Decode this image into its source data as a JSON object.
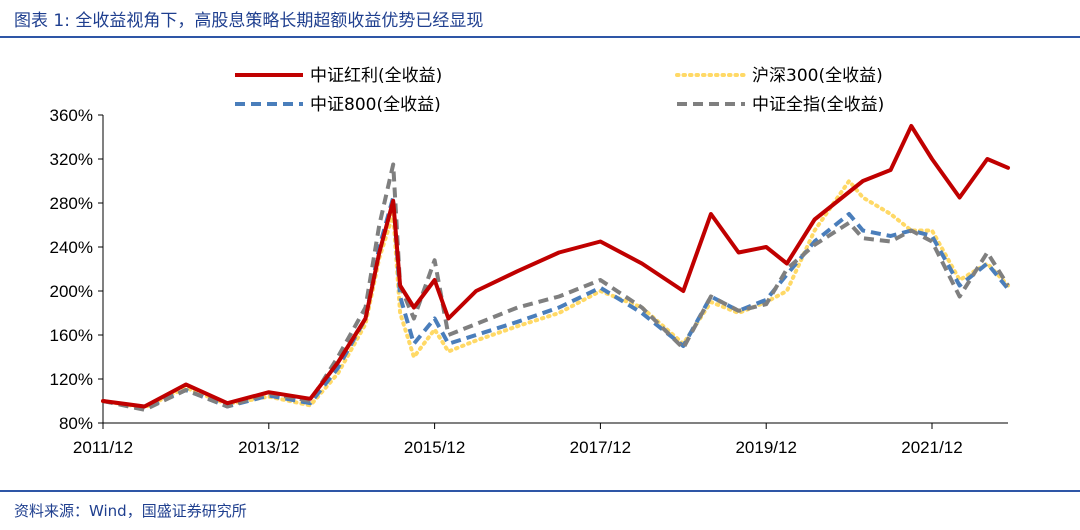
{
  "header": {
    "title": "图表 1: 全收益视角下，高股息策略长期超额收益优势已经显现"
  },
  "footer": {
    "source": "资料来源：Wind，国盛证券研究所"
  },
  "chart_data": {
    "type": "line",
    "title": "",
    "xlabel": "",
    "ylabel": "",
    "x_ticks": [
      "2011/12",
      "2013/12",
      "2015/12",
      "2017/12",
      "2019/12",
      "2021/12"
    ],
    "y_ticks": [
      "80%",
      "120%",
      "160%",
      "200%",
      "240%",
      "280%",
      "320%",
      "360%"
    ],
    "ylim": [
      80,
      360
    ],
    "xlim": [
      "2011/12",
      "2022/11"
    ],
    "legend_position": "top",
    "x": [
      "2011/12",
      "2012/06",
      "2012/12",
      "2013/06",
      "2013/12",
      "2014/06",
      "2014/10",
      "2015/02",
      "2015/04",
      "2015/06",
      "2015/07",
      "2015/09",
      "2015/12",
      "2016/02",
      "2016/06",
      "2016/12",
      "2017/06",
      "2017/12",
      "2018/06",
      "2018/12",
      "2019/04",
      "2019/08",
      "2019/12",
      "2020/03",
      "2020/07",
      "2020/12",
      "2021/02",
      "2021/06",
      "2021/09",
      "2021/12",
      "2022/04",
      "2022/08",
      "2022/11"
    ],
    "series": [
      {
        "name": "中证红利(全收益)",
        "color": "#c00000",
        "style": "solid",
        "values": [
          100,
          95,
          115,
          98,
          108,
          102,
          135,
          175,
          235,
          282,
          205,
          185,
          210,
          175,
          200,
          218,
          235,
          245,
          225,
          200,
          270,
          235,
          240,
          225,
          265,
          290,
          300,
          310,
          350,
          320,
          285,
          320,
          312
        ]
      },
      {
        "name": "沪深300(全收益)",
        "color": "#ffd966",
        "style": "dotted",
        "values": [
          100,
          94,
          112,
          97,
          104,
          96,
          125,
          170,
          230,
          270,
          180,
          140,
          165,
          145,
          155,
          168,
          180,
          200,
          185,
          152,
          190,
          180,
          190,
          200,
          255,
          300,
          285,
          270,
          255,
          255,
          210,
          225,
          205
        ]
      },
      {
        "name": "中证800(全收益)",
        "color": "#4a7ebb",
        "style": "dashed",
        "values": [
          100,
          93,
          110,
          95,
          105,
          98,
          130,
          175,
          240,
          285,
          195,
          152,
          175,
          152,
          160,
          172,
          185,
          203,
          180,
          150,
          195,
          182,
          192,
          215,
          245,
          270,
          255,
          250,
          255,
          250,
          205,
          225,
          202
        ]
      },
      {
        "name": "中证全指(全收益)",
        "color": "#7f7f7f",
        "style": "dashed",
        "values": [
          100,
          92,
          110,
          95,
          107,
          100,
          140,
          185,
          260,
          315,
          205,
          175,
          228,
          160,
          170,
          185,
          195,
          210,
          185,
          148,
          195,
          182,
          188,
          220,
          242,
          262,
          248,
          245,
          255,
          245,
          195,
          235,
          205
        ]
      }
    ]
  }
}
